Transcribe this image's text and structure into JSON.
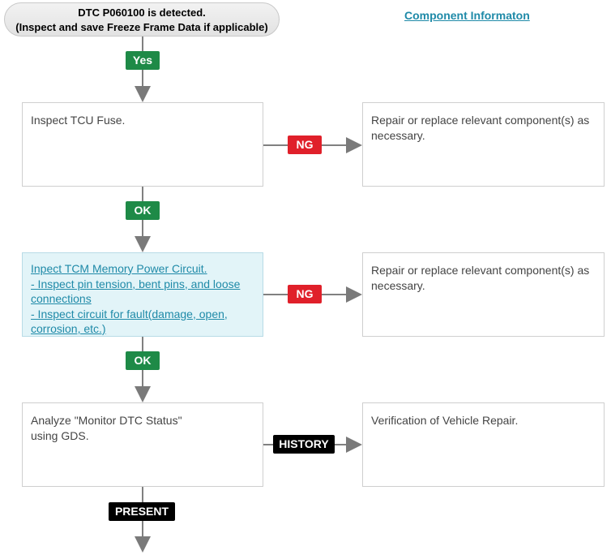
{
  "start": {
    "line1": "DTC P060100 is detected.",
    "line2": "(Inspect and save Freeze Frame Data if applicable)"
  },
  "component_link": "Component Informaton",
  "steps": [
    {
      "text": "Inspect TCU Fuse.",
      "ng_label": "NG",
      "ng_result": "Repair or replace relevant component(s) as necessary."
    },
    {
      "lines": [
        "Inpect TCM Memory Power Circuit.",
        "- Inspect pin tension, bent pins, and loose connections",
        "- Inspect circuit for fault(damage, open, corrosion, etc.)"
      ],
      "ng_label": "NG",
      "ng_result": "Repair or replace relevant component(s) as necessary."
    },
    {
      "line1": "Analyze \"Monitor DTC Status\"",
      "line2": "using GDS.",
      "history_label": "HISTORY",
      "history_result": "Verification of Vehicle Repair.",
      "present_label": "PRESENT"
    }
  ],
  "labels": {
    "yes": "Yes",
    "ok1": "OK",
    "ok2": "OK"
  },
  "colors": {
    "ok": "#1e8a47",
    "ng": "#e0202a",
    "status": "#000000",
    "link": "#1f8aa8"
  }
}
